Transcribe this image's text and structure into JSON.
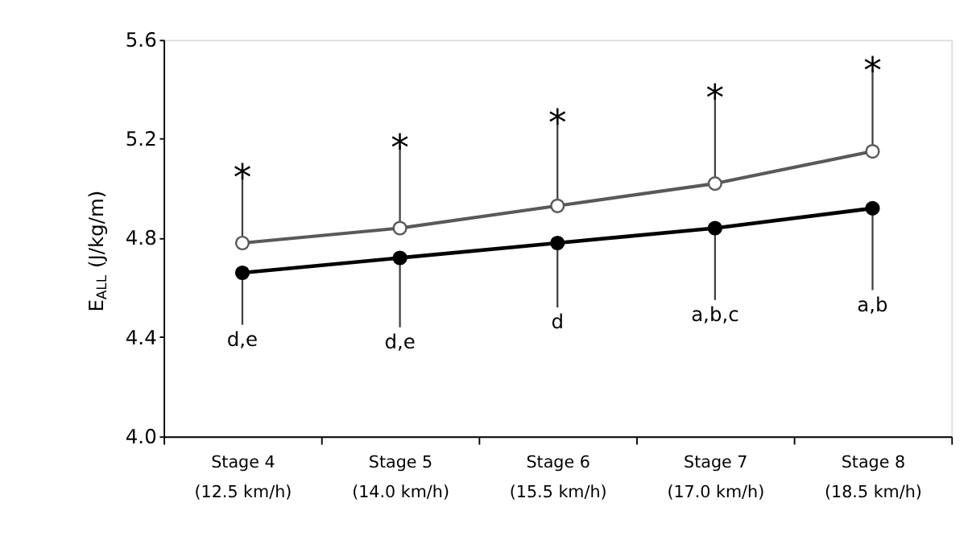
{
  "chart_data": {
    "type": "line",
    "ylabel": "E$_{ALL}$ (J/kg/m)",
    "categories": [
      "Stage 4\n(12.5 km/h)",
      "Stage 5\n(14.0 km/h)",
      "Stage 6\n(15.5 km/h)",
      "Stage 7\n(17.0 km/h)",
      "Stage 8\n(18.5 km/h)"
    ],
    "series": [
      {
        "color": "#595959",
        "values": [
          4.78,
          4.84,
          4.93,
          5.02,
          5.15
        ],
        "errors": [
          [
            4.78,
            5.05
          ],
          [
            4.84,
            5.17
          ],
          [
            4.93,
            5.27
          ],
          [
            5.02,
            5.37
          ],
          [
            5.15,
            5.48
          ]
        ]
      },
      {
        "color": "#000000",
        "values": [
          4.66,
          4.72,
          4.78,
          4.84,
          4.92
        ],
        "errors": [
          [
            4.45,
            4.66
          ],
          [
            4.44,
            4.72
          ],
          [
            4.52,
            4.78
          ],
          [
            4.55,
            4.84
          ],
          [
            4.59,
            4.92
          ]
        ]
      }
    ],
    "ylim": [
      4.0,
      5.6
    ],
    "yticks": [
      {
        "value": 4.0,
        "label": "4.0"
      },
      {
        "value": 4.4,
        "label": "4.4"
      },
      {
        "value": 4.8,
        "label": "4.8"
      },
      {
        "value": 5.2,
        "label": "5.2"
      },
      {
        "value": 5.6,
        "label": "5.6"
      }
    ],
    "grid": false,
    "marker": "circle",
    "line_style": "solid",
    "annotations": [
      "*",
      "*",
      "*",
      "*",
      "*",
      "d,e",
      "d,e",
      "d",
      "a,b,c",
      "a,b"
    ]
  }
}
